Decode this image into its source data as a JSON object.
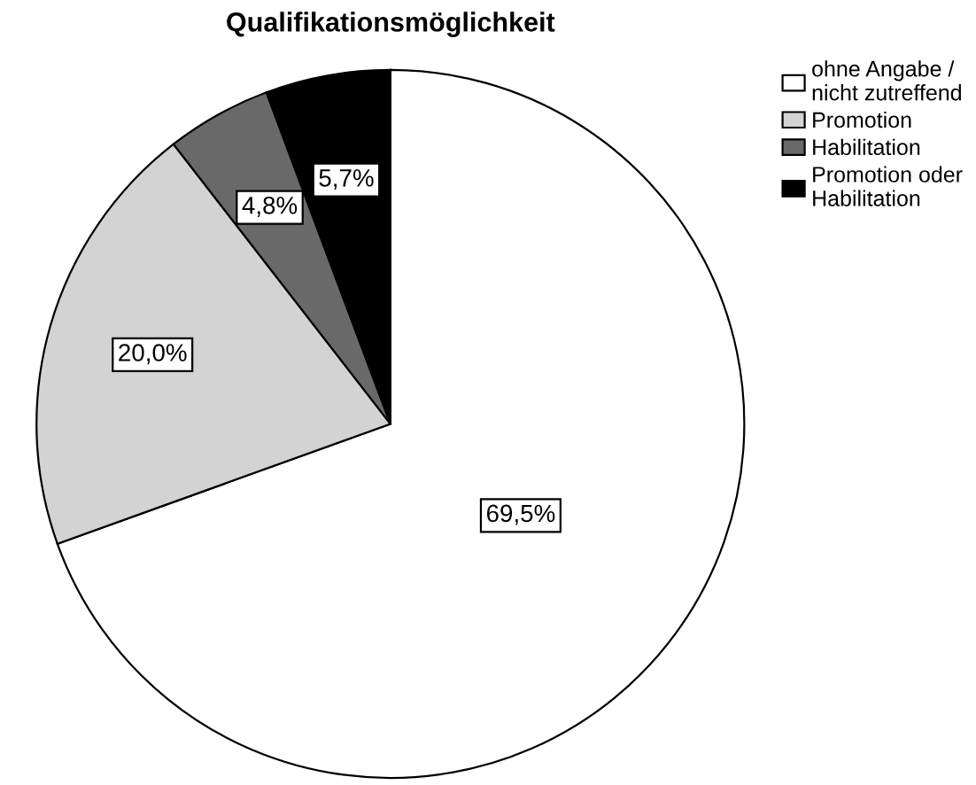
{
  "chart_data": {
    "type": "pie",
    "title": "Qualifikationsmöglichkeit",
    "categories": [
      "ohne Angabe / nicht zutreffend",
      "Promotion",
      "Habilitation",
      "Promotion oder Habilitation"
    ],
    "values": [
      69.5,
      20.0,
      4.8,
      5.7
    ],
    "value_labels": [
      "69,5%",
      "20,0%",
      "4,8%",
      "5,7%"
    ],
    "colors": [
      "#ffffff",
      "#d3d3d3",
      "#696969",
      "#000000"
    ],
    "legend": "top right"
  }
}
